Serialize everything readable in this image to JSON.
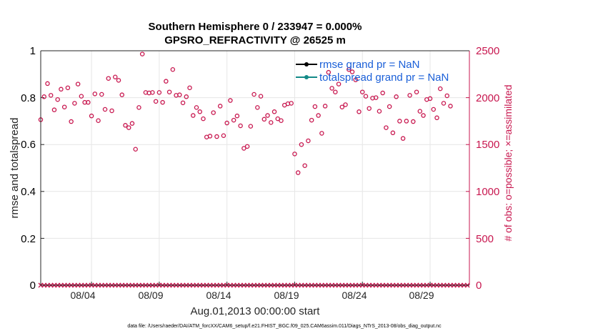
{
  "chart_data": {
    "type": "scatter",
    "title": "Southern Hemisphere 0 / 233947 = 0.000%",
    "subtitle": "GPSRO_REFRACTIVITY @ 26525 m",
    "xlabel": "Aug.01,2013 00:00:00 start",
    "ylabel_left": "rmse and totalspread",
    "ylabel_right": "# of obs: o=possible; ×=assimilated",
    "ylim_left": [
      0,
      1
    ],
    "ylim_right": [
      0,
      2500
    ],
    "xlim": [
      0.25,
      31.9
    ],
    "left_ticks": [
      "0",
      "0.2",
      "0.4",
      "0.6",
      "0.8",
      "1"
    ],
    "right_ticks": [
      "0",
      "500",
      "1000",
      "1500",
      "2000",
      "2500"
    ],
    "x_ticks": [
      {
        "label": "08/04",
        "value": 4
      },
      {
        "label": "08/09",
        "value": 9
      },
      {
        "label": "08/14",
        "value": 14
      },
      {
        "label": "08/19",
        "value": 19
      },
      {
        "label": "08/24",
        "value": 24
      },
      {
        "label": "08/29",
        "value": 29
      }
    ],
    "grid": true,
    "legend_position": "top-right",
    "legend": [
      {
        "label": "rmse grand pr = NaN",
        "color": "#000000"
      },
      {
        "label": "totalspread grand pr = NaN",
        "color": "#138a87"
      }
    ],
    "series": [
      {
        "name": "possible",
        "marker": "circle",
        "color": "#c8174f",
        "axis": "right",
        "x_start": 0.25,
        "x_step": 0.25,
        "values": [
          1765,
          2010,
          2150,
          2025,
          1870,
          1980,
          2090,
          1900,
          2105,
          1745,
          1940,
          2145,
          2015,
          1950,
          1950,
          1805,
          2040,
          1755,
          2035,
          1875,
          2205,
          1860,
          2220,
          2185,
          2030,
          1705,
          1680,
          1725,
          1450,
          1895,
          2465,
          2055,
          2050,
          2055,
          1960,
          2055,
          1950,
          2175,
          2060,
          2300,
          2025,
          2030,
          1945,
          2010,
          2105,
          1810,
          1895,
          1850,
          1775,
          1580,
          1590,
          1840,
          1585,
          1910,
          1595,
          1730,
          1970,
          1760,
          1805,
          1700,
          1460,
          1480,
          1695,
          2035,
          1895,
          2015,
          1770,
          1810,
          1735,
          1850,
          1775,
          1755,
          1920,
          1935,
          1940,
          1400,
          1200,
          1500,
          1275,
          1540,
          1760,
          1905,
          1810,
          1620,
          1910,
          2270,
          2100,
          2060,
          2145,
          1900,
          1925,
          2300,
          2275,
          2190,
          1850,
          2060,
          2015,
          1885,
          1995,
          2000,
          1855,
          2050,
          1680,
          1905,
          1625,
          2010,
          1750,
          1565,
          1750,
          2025,
          1745,
          2060,
          1855,
          1810,
          1980,
          1990,
          1875,
          1785,
          2095,
          1940,
          2020,
          1910
        ]
      },
      {
        "name": "assimilated",
        "marker": "x",
        "color": "#c8174f",
        "axis": "right",
        "x_start": 0.25,
        "x_step": 0.25,
        "values": [
          0,
          0,
          0,
          0,
          0,
          0,
          0,
          0,
          0,
          0,
          0,
          0,
          0,
          0,
          0,
          0,
          0,
          0,
          0,
          0,
          0,
          0,
          0,
          0,
          0,
          0,
          0,
          0,
          0,
          0,
          0,
          0,
          0,
          0,
          0,
          0,
          0,
          0,
          0,
          0,
          0,
          0,
          0,
          0,
          0,
          0,
          0,
          0,
          0,
          0,
          0,
          0,
          0,
          0,
          0,
          0,
          0,
          0,
          0,
          0,
          0,
          0,
          0,
          0,
          0,
          0,
          0,
          0,
          0,
          0,
          0,
          0,
          0,
          0,
          0,
          0,
          0,
          0,
          0,
          0,
          0,
          0,
          0,
          0,
          0,
          0,
          0,
          0,
          0,
          0,
          0,
          0,
          0,
          0,
          0,
          0,
          0,
          0,
          0,
          0,
          0,
          0,
          0,
          0,
          0,
          0,
          0,
          0,
          0,
          0,
          0,
          0,
          0,
          0,
          0,
          0,
          0,
          0,
          0,
          0,
          0,
          0,
          0,
          0,
          0,
          0,
          0
        ]
      }
    ]
  },
  "footnote": "data file: /Users/raeder/DAI/ATM_forcXX/CAM6_setup/f.e21.FHIST_BGC.f09_025.CAM6assim.011/Diags_NTrS_2013-08/obs_diag_output.nc"
}
